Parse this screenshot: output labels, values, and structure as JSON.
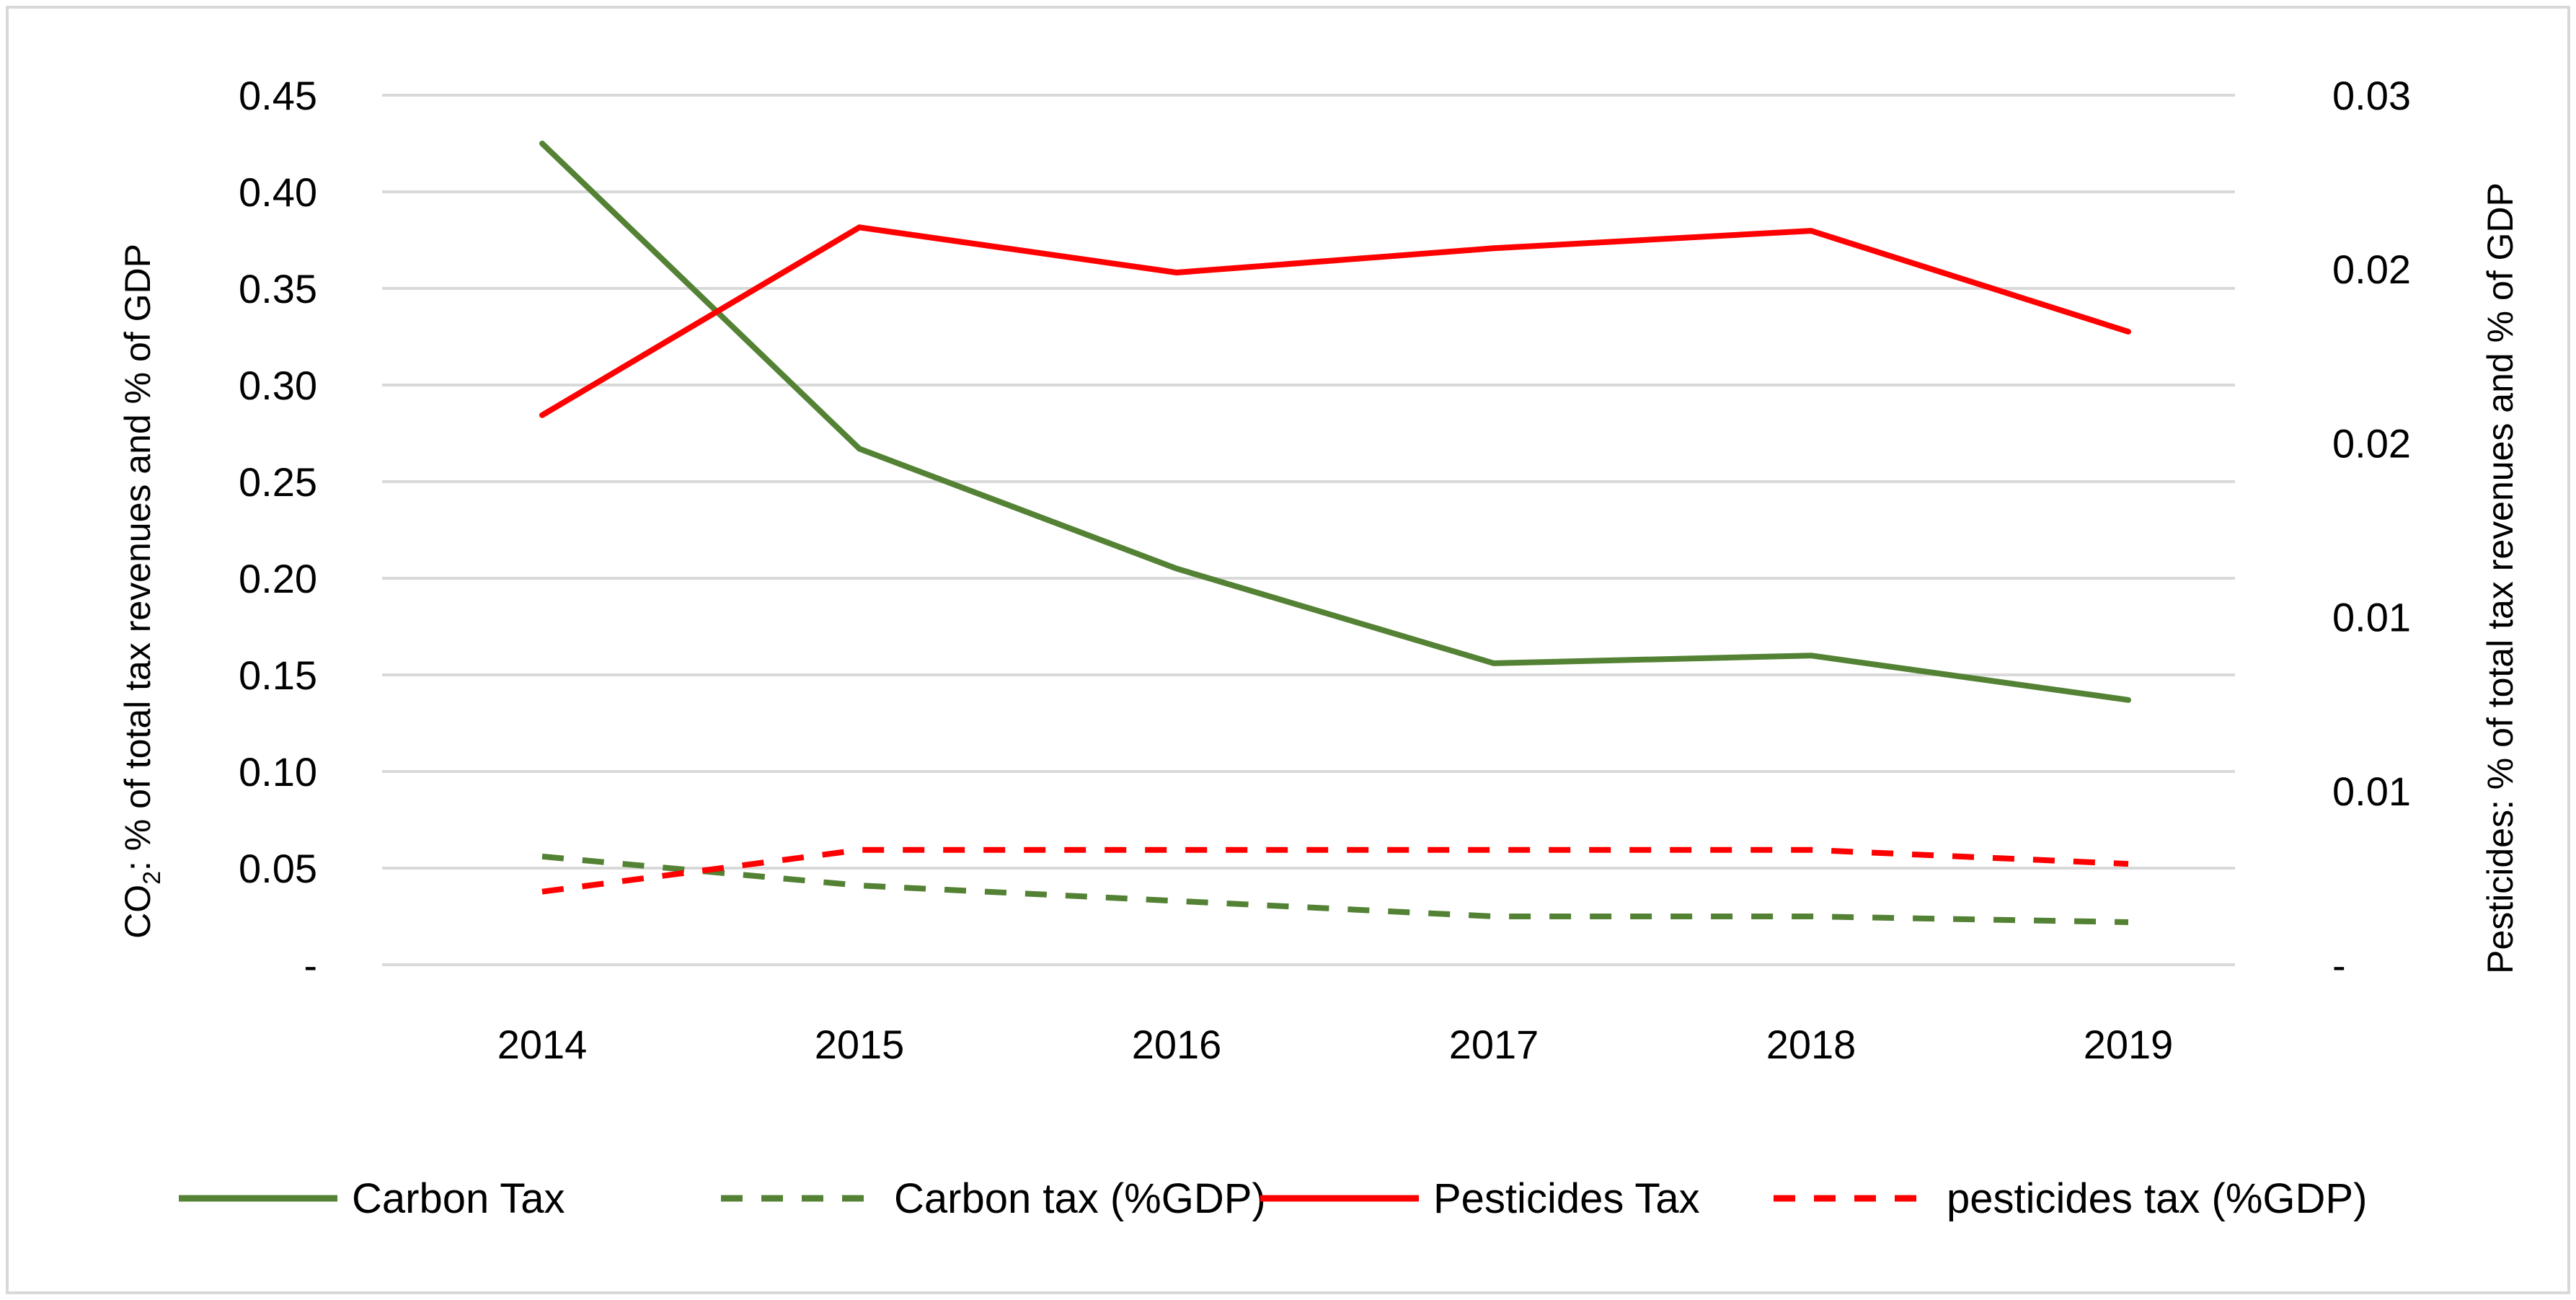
{
  "chart_data": {
    "type": "line",
    "title": "",
    "categories": [
      "2014",
      "2015",
      "2016",
      "2017",
      "2018",
      "2019"
    ],
    "y_left": {
      "label_prefix": "CO",
      "label_subscript": "2",
      "label_suffix": ": % of total tax revenues and % of GDP",
      "ylim": [
        0,
        0.45
      ],
      "tick_values": [
        0,
        0.05,
        0.1,
        0.15,
        0.2,
        0.25,
        0.3,
        0.35,
        0.4,
        0.45
      ],
      "tick_labels": [
        "-",
        "0.05",
        "0.10",
        "0.15",
        "0.20",
        "0.25",
        "0.30",
        "0.35",
        "0.40",
        "0.45"
      ]
    },
    "y_right": {
      "label": "Pesticides: % of total tax revenues and % of GDP",
      "ylim": [
        0,
        0.025
      ],
      "tick_values": [
        0,
        0.005,
        0.01,
        0.015,
        0.02,
        0.025
      ],
      "tick_labels": [
        "-",
        "0.01",
        "0.01",
        "0.02",
        "0.02",
        "0.03"
      ]
    },
    "series": [
      {
        "name": "Carbon Tax",
        "axis": "left",
        "color": "#548235",
        "dash": "solid",
        "values": [
          0.425,
          0.267,
          0.205,
          0.156,
          0.16,
          0.137
        ]
      },
      {
        "name": "Carbon tax (%GDP)",
        "axis": "left",
        "color": "#548235",
        "dash": "dashed",
        "values": [
          0.056,
          0.041,
          0.033,
          0.025,
          0.025,
          0.022
        ]
      },
      {
        "name": "Pesticides Tax",
        "axis": "right",
        "color": "#ff0000",
        "dash": "solid",
        "values": [
          0.0158,
          0.0212,
          0.0199,
          0.0206,
          0.0211,
          0.0182
        ]
      },
      {
        "name": "pesticides tax (%GDP)",
        "axis": "right",
        "color": "#ff0000",
        "dash": "dashed",
        "values": [
          0.0021,
          0.0033,
          0.0033,
          0.0033,
          0.0033,
          0.0029
        ]
      }
    ],
    "grid": true,
    "legend_position": "bottom"
  }
}
